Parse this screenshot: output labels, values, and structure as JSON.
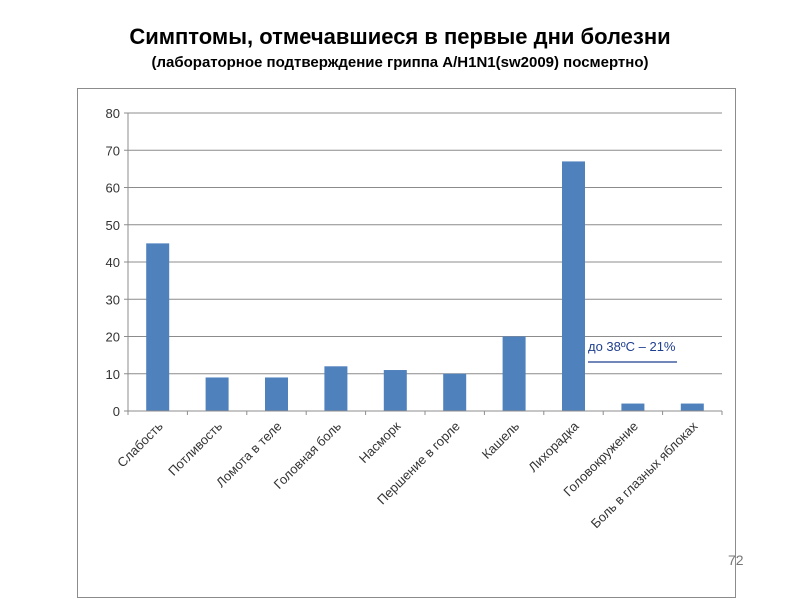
{
  "header": {
    "title": "Симптомы, отмечавшиеся в первые дни болезни",
    "subtitle": "(лабораторное подтверждение гриппа A/H1N1(sw2009) посмертно)"
  },
  "footer": {
    "page_number": "72"
  },
  "chart_data": {
    "type": "bar",
    "categories": [
      "Слабость",
      "Потливость",
      "Ломота в теле",
      "Головная боль",
      "Насморк",
      "Першение в горле",
      "Кашель",
      "Лихорадка",
      "Головокружение",
      "Боль в глазных яблоках"
    ],
    "values": [
      45,
      9,
      9,
      12,
      11,
      10,
      20,
      67,
      2,
      2
    ],
    "ylim": [
      0,
      80
    ],
    "yticks": [
      0,
      10,
      20,
      30,
      40,
      50,
      60,
      70,
      80
    ],
    "grid": true,
    "bar_color": "#4f81bd",
    "annotation": {
      "text": "до 38ºС – 21%",
      "color": "#1f3f8f"
    }
  }
}
